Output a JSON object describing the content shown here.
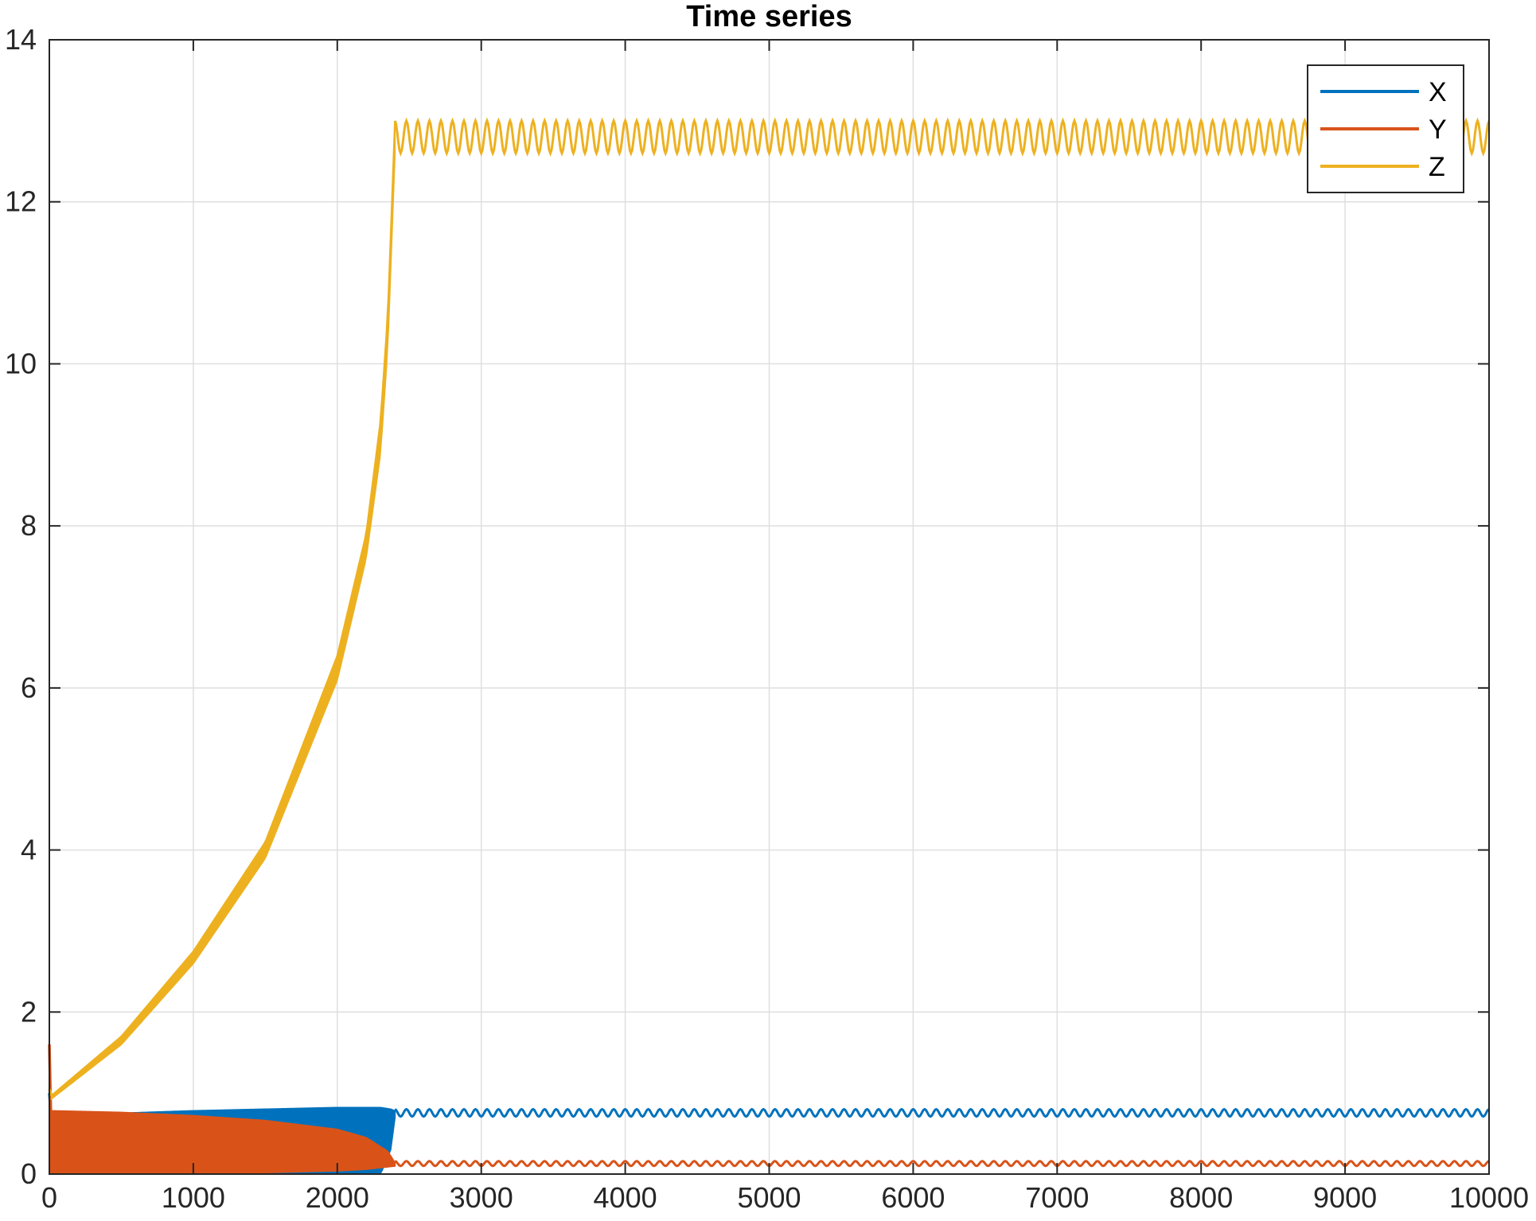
{
  "chart_data": {
    "type": "line",
    "title": "Time series",
    "xlabel": "",
    "ylabel": "",
    "xlim": [
      0,
      10000
    ],
    "ylim": [
      0,
      14
    ],
    "xticks": [
      0,
      1000,
      2000,
      3000,
      4000,
      5000,
      6000,
      7000,
      8000,
      9000,
      10000
    ],
    "yticks": [
      0,
      2,
      4,
      6,
      8,
      10,
      12,
      14
    ],
    "xtick_labels": [
      "0",
      "1000",
      "2000",
      "3000",
      "4000",
      "5000",
      "6000",
      "7000",
      "8000",
      "9000",
      "10000"
    ],
    "ytick_labels": [
      "0",
      "2",
      "4",
      "6",
      "8",
      "10",
      "12",
      "14"
    ],
    "grid": true,
    "legend_position": "top-right",
    "transition_x": 2400,
    "series": [
      {
        "name": "X",
        "color": "#0072BD",
        "initial": 1.0,
        "transient_band": {
          "x": [
            10,
            500,
            1000,
            1500,
            2000,
            2300,
            2370,
            2400
          ],
          "low": [
            0.0,
            0.0,
            0.0,
            0.0,
            0.0,
            0.0,
            0.3,
            0.7
          ],
          "high": [
            0.75,
            0.75,
            0.78,
            0.8,
            0.82,
            0.82,
            0.8,
            0.78
          ]
        },
        "steady": {
          "low": 0.71,
          "high": 0.8,
          "cycles_per_1000": 12.5
        }
      },
      {
        "name": "Y",
        "color": "#D95319",
        "initial": 1.6,
        "transient_band": {
          "x": [
            10,
            500,
            1000,
            1500,
            2000,
            2200,
            2350,
            2400
          ],
          "low": [
            0.0,
            0.0,
            0.0,
            0.02,
            0.04,
            0.06,
            0.09,
            0.1
          ],
          "high": [
            0.78,
            0.76,
            0.72,
            0.66,
            0.55,
            0.45,
            0.28,
            0.14
          ]
        },
        "steady": {
          "low": 0.1,
          "high": 0.16,
          "cycles_per_1000": 12.5
        }
      },
      {
        "name": "Z",
        "color": "#EDB120",
        "initial": 1.05,
        "transient_band": {
          "x": [
            15,
            500,
            1000,
            1500,
            2000,
            2200,
            2300,
            2350,
            2400
          ],
          "low": [
            0.93,
            1.6,
            2.6,
            3.9,
            6.1,
            7.6,
            8.9,
            10.2,
            12.6
          ],
          "high": [
            0.97,
            1.7,
            2.75,
            4.1,
            6.4,
            7.9,
            9.3,
            10.6,
            13.0
          ]
        },
        "steady": {
          "low": 12.6,
          "high": 13.0,
          "cycles_per_1000": 12.5
        }
      }
    ]
  }
}
